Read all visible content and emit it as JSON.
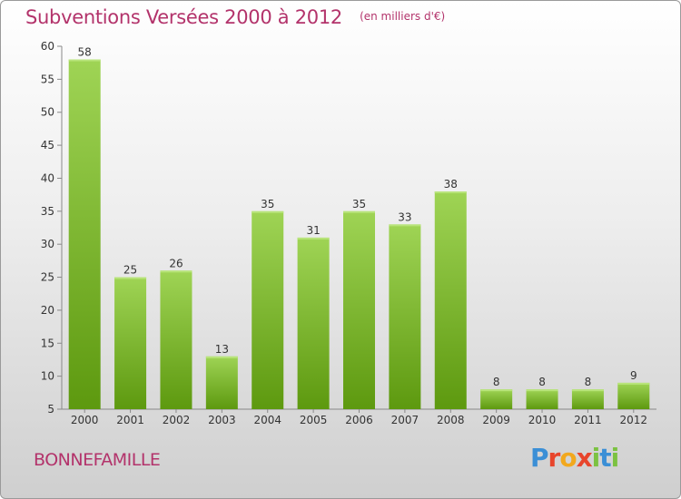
{
  "header": {
    "title": "Subventions Versées 2000 à 2012",
    "subtitle": "(en milliers d'€)"
  },
  "footer": {
    "commune": "BONNEFAMILLE",
    "brand": "Proxiti"
  },
  "colors": {
    "title": "#b3336b",
    "bar_top": "#9fd455",
    "bar_bottom": "#5d990f",
    "brand_letters": [
      "#3b8fd6",
      "#e8452c",
      "#f2a81d",
      "#e8452c",
      "#7cc242",
      "#3b8fd6",
      "#7cc242"
    ]
  },
  "chart_data": {
    "type": "bar",
    "title": "Subventions Versées 2000 à 2012",
    "subtitle": "(en milliers d'€)",
    "categories": [
      "2000",
      "2001",
      "2002",
      "2003",
      "2004",
      "2005",
      "2006",
      "2007",
      "2008",
      "2009",
      "2010",
      "2011",
      "2012"
    ],
    "values": [
      58,
      25,
      26,
      13,
      35,
      31,
      35,
      33,
      38,
      8,
      8,
      8,
      9
    ],
    "ylim": [
      5,
      60
    ],
    "yticks": [
      5,
      10,
      15,
      20,
      25,
      30,
      35,
      40,
      45,
      50,
      55,
      60
    ],
    "grid": false,
    "data_labels": true
  }
}
